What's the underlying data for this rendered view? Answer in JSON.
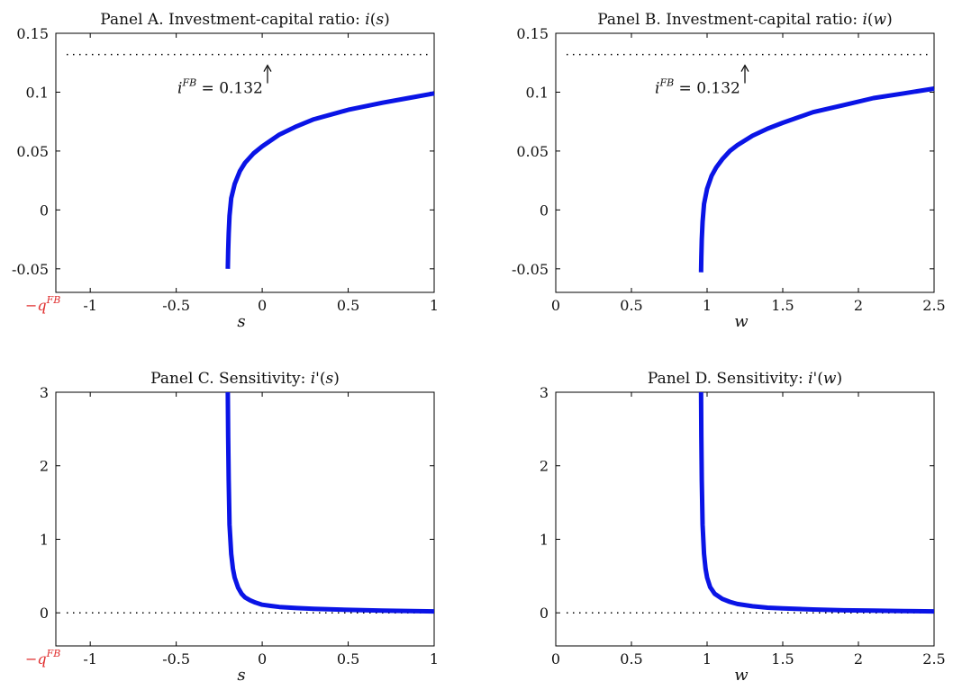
{
  "chart_data": [
    {
      "id": "A",
      "type": "line",
      "title": "Panel A. Investment-capital ratio: i(s)",
      "xlabel": "s",
      "xlim": [
        -1.2,
        1
      ],
      "ylim": [
        -0.07,
        0.15
      ],
      "xticks": [
        -1,
        -0.5,
        0,
        0.5,
        1
      ],
      "xtick_labels": [
        "-1",
        "-0.5",
        "0",
        "0.5",
        "1"
      ],
      "yticks": [
        -0.05,
        0,
        0.05,
        0.1,
        0.15
      ],
      "ytick_labels": [
        "-0.05",
        "0",
        "0.05",
        "0.1",
        "0.15"
      ],
      "extra_xtick_label": "−q^FB",
      "reference_line": {
        "y": 0.132,
        "style": "dotted"
      },
      "annotation": "i^FB = 0.132",
      "series": [
        {
          "x": [
            -0.2,
            -0.198,
            -0.195,
            -0.19,
            -0.18,
            -0.16,
            -0.13,
            -0.1,
            -0.05,
            0,
            0.1,
            0.2,
            0.3,
            0.5,
            0.7,
            0.85,
            1.0
          ],
          "y": [
            -0.05,
            -0.035,
            -0.02,
            -0.005,
            0.01,
            0.022,
            0.033,
            0.04,
            0.048,
            0.054,
            0.064,
            0.071,
            0.077,
            0.085,
            0.091,
            0.095,
            0.099
          ]
        }
      ]
    },
    {
      "id": "B",
      "type": "line",
      "title": "Panel B. Investment-capital ratio: i(w)",
      "xlabel": "w",
      "xlim": [
        0,
        2.5
      ],
      "ylim": [
        -0.07,
        0.15
      ],
      "xticks": [
        0,
        0.5,
        1,
        1.5,
        2,
        2.5
      ],
      "xtick_labels": [
        "0",
        "0.5",
        "1",
        "1.5",
        "2",
        "2.5"
      ],
      "yticks": [
        -0.05,
        0,
        0.05,
        0.1,
        0.15
      ],
      "ytick_labels": [
        "-0.05",
        "0",
        "0.05",
        "0.1",
        "0.15"
      ],
      "reference_line": {
        "y": 0.132,
        "style": "dotted"
      },
      "annotation": "i^FB = 0.132",
      "series": [
        {
          "x": [
            0.96,
            0.962,
            0.965,
            0.97,
            0.98,
            1.0,
            1.03,
            1.06,
            1.1,
            1.15,
            1.2,
            1.3,
            1.4,
            1.5,
            1.7,
            1.9,
            2.1,
            2.3,
            2.5
          ],
          "y": [
            -0.053,
            -0.04,
            -0.025,
            -0.01,
            0.005,
            0.018,
            0.029,
            0.036,
            0.043,
            0.05,
            0.055,
            0.063,
            0.069,
            0.074,
            0.083,
            0.089,
            0.095,
            0.099,
            0.103
          ]
        }
      ]
    },
    {
      "id": "C",
      "type": "line",
      "title": "Panel C. Sensitivity: i'(s)",
      "xlabel": "s",
      "xlim": [
        -1.2,
        1
      ],
      "ylim": [
        -0.45,
        3
      ],
      "xticks": [
        -1,
        -0.5,
        0,
        0.5,
        1
      ],
      "xtick_labels": [
        "-1",
        "-0.5",
        "0",
        "0.5",
        "1"
      ],
      "yticks": [
        0,
        1,
        2,
        3
      ],
      "ytick_labels": [
        "0",
        "1",
        "2",
        "3"
      ],
      "extra_xtick_label": "−q^FB",
      "reference_line": {
        "y": 0,
        "style": "dotted"
      },
      "series": [
        {
          "x": [
            -0.2,
            -0.198,
            -0.195,
            -0.19,
            -0.18,
            -0.17,
            -0.16,
            -0.14,
            -0.12,
            -0.1,
            -0.07,
            -0.04,
            0,
            0.05,
            0.1,
            0.2,
            0.3,
            0.5,
            0.7,
            1.0
          ],
          "y": [
            3.0,
            2.4,
            1.8,
            1.2,
            0.8,
            0.6,
            0.48,
            0.34,
            0.26,
            0.21,
            0.17,
            0.14,
            0.11,
            0.095,
            0.08,
            0.065,
            0.055,
            0.04,
            0.03,
            0.02
          ]
        }
      ]
    },
    {
      "id": "D",
      "type": "line",
      "title": "Panel D. Sensitivity: i'(w)",
      "xlabel": "w",
      "xlim": [
        0,
        2.5
      ],
      "ylim": [
        -0.45,
        3
      ],
      "xticks": [
        0,
        0.5,
        1,
        1.5,
        2,
        2.5
      ],
      "xtick_labels": [
        "0",
        "0.5",
        "1",
        "1.5",
        "2",
        "2.5"
      ],
      "yticks": [
        0,
        1,
        2,
        3
      ],
      "ytick_labels": [
        "0",
        "1",
        "2",
        "3"
      ],
      "reference_line": {
        "y": 0,
        "style": "dotted"
      },
      "series": [
        {
          "x": [
            0.96,
            0.962,
            0.965,
            0.97,
            0.98,
            0.99,
            1.0,
            1.02,
            1.05,
            1.1,
            1.15,
            1.2,
            1.3,
            1.4,
            1.5,
            1.7,
            1.9,
            2.1,
            2.3,
            2.5
          ],
          "y": [
            3.0,
            2.4,
            1.8,
            1.2,
            0.8,
            0.6,
            0.48,
            0.35,
            0.26,
            0.19,
            0.15,
            0.12,
            0.09,
            0.07,
            0.06,
            0.045,
            0.035,
            0.03,
            0.025,
            0.02
          ]
        }
      ]
    }
  ]
}
